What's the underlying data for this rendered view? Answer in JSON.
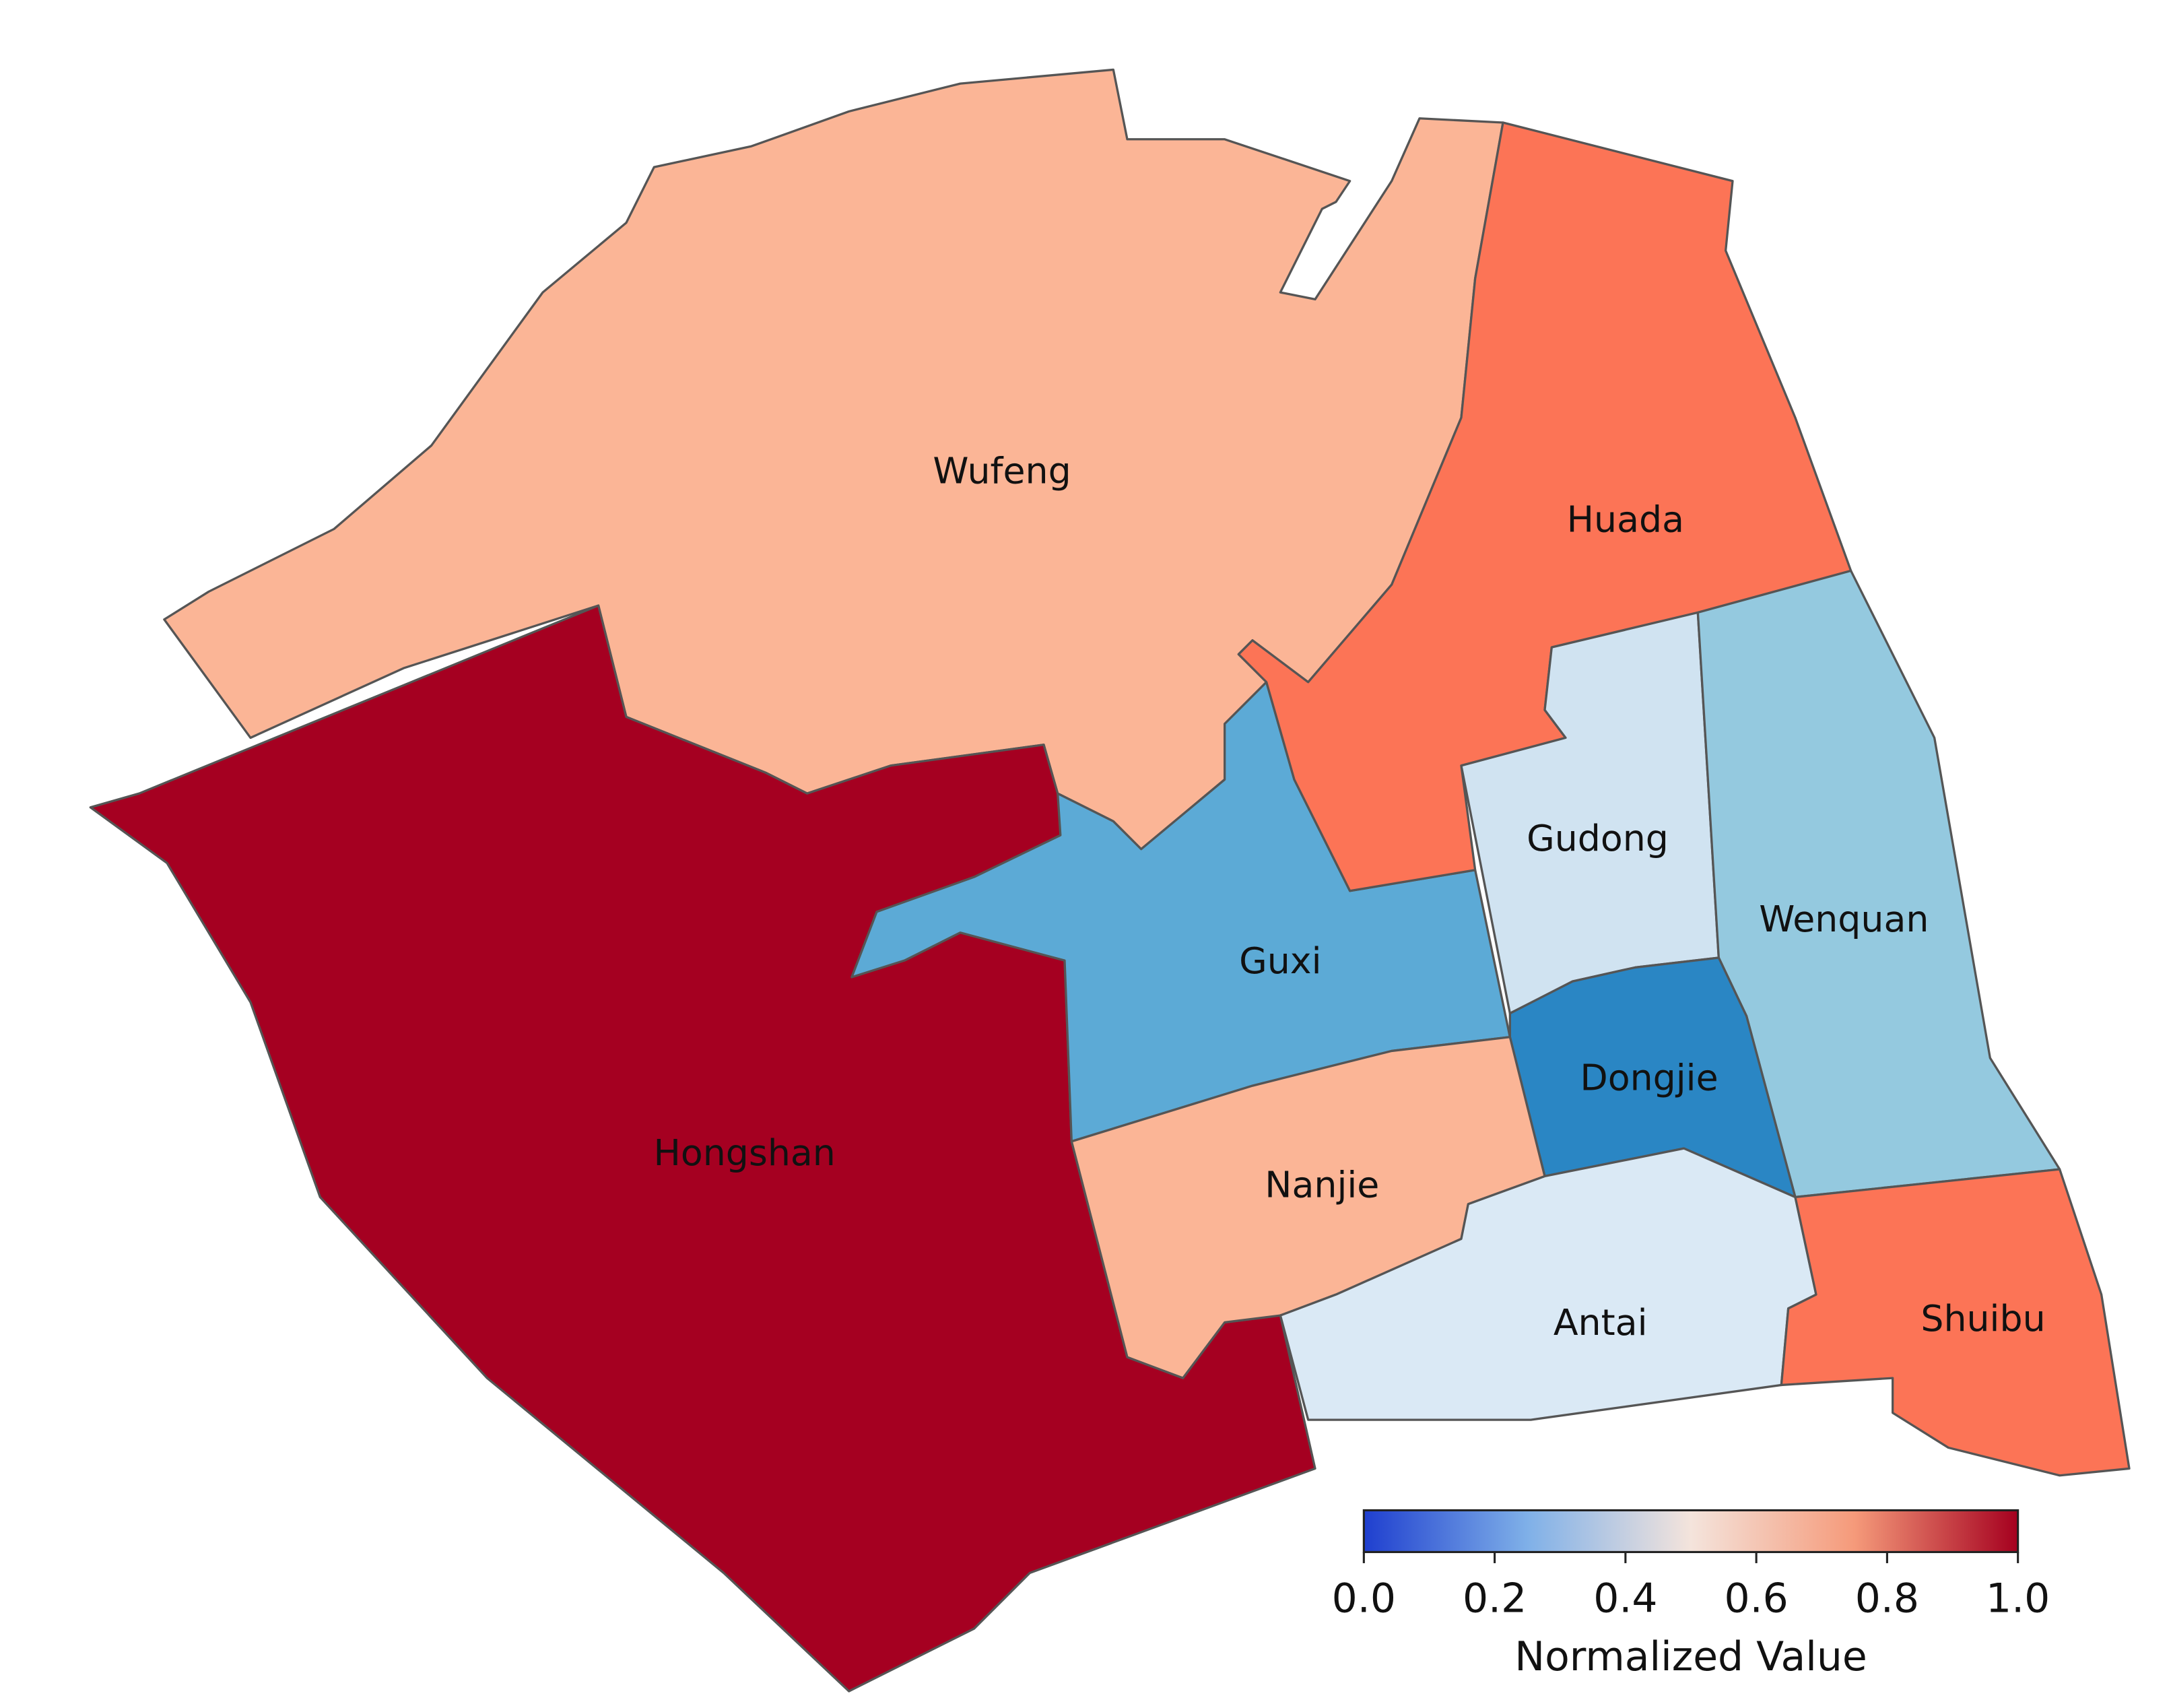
{
  "map": {
    "regions": [
      {
        "name": "Wufeng",
        "value": 0.65,
        "color": "#fbb596"
      },
      {
        "name": "Hongshan",
        "value": 1.0,
        "color": "#a50021"
      },
      {
        "name": "Guxi",
        "value": 0.3,
        "color": "#5caad6"
      },
      {
        "name": "Huada",
        "value": 0.8,
        "color": "#fc7456"
      },
      {
        "name": "Gudong",
        "value": 0.43,
        "color": "#d0e3f1"
      },
      {
        "name": "Wenquan",
        "value": 0.35,
        "color": "#94c9df"
      },
      {
        "name": "Dongjie",
        "value": 0.2,
        "color": "#2a86c4"
      },
      {
        "name": "Nanjie",
        "value": 0.65,
        "color": "#fbb596"
      },
      {
        "name": "Antai",
        "value": 0.45,
        "color": "#dae9f5"
      },
      {
        "name": "Shuibu",
        "value": 0.8,
        "color": "#fc7456"
      }
    ],
    "colorbar": {
      "label": "Normalized Value",
      "lim": [
        0,
        1
      ],
      "ticks": [
        {
          "value": 0,
          "label": "0.0"
        },
        {
          "value": 0.2,
          "label": "0.2"
        },
        {
          "value": 0.4,
          "label": "0.4"
        },
        {
          "value": 0.6,
          "label": "0.6"
        },
        {
          "value": 0.8,
          "label": "0.8"
        },
        {
          "value": 1,
          "label": "1.0"
        }
      ]
    }
  }
}
